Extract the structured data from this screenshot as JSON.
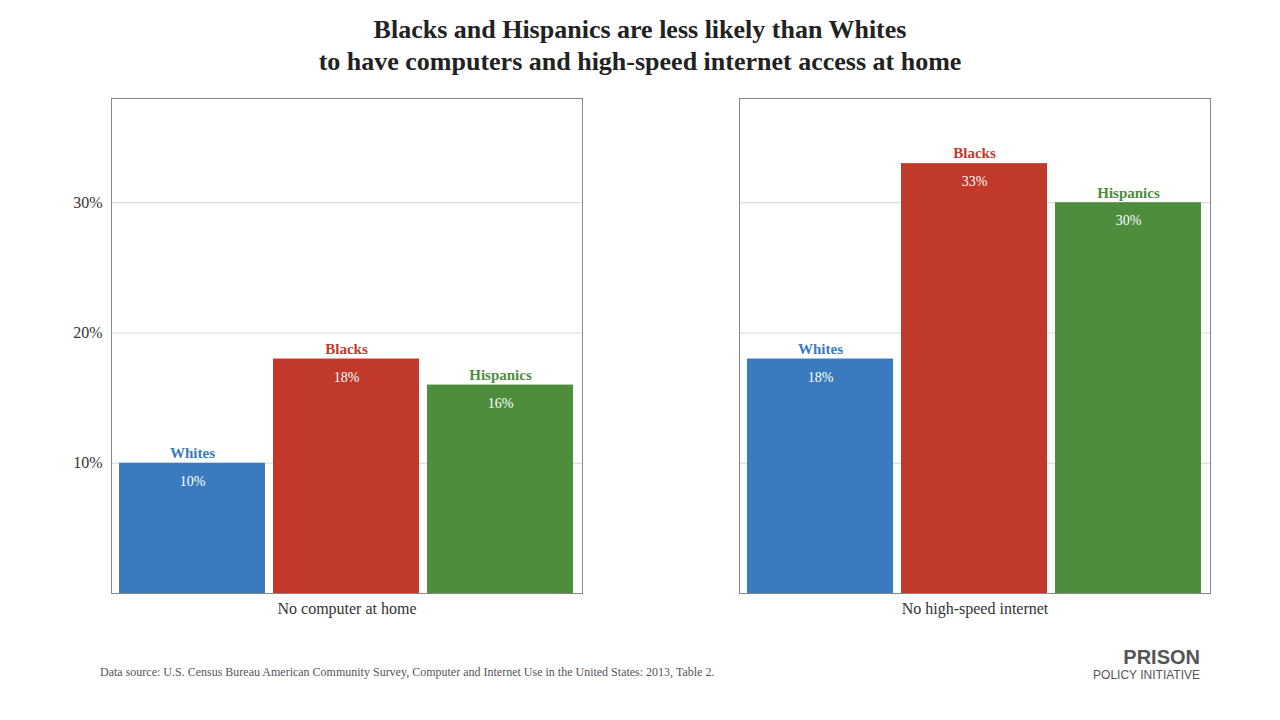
{
  "chart_data": {
    "type": "bar",
    "title": "Blacks and Hispanics are less likely than Whites",
    "subtitle": "to have computers and high-speed internet access at home",
    "categories": [
      "No computer at home",
      "No high-speed internet"
    ],
    "series": [
      {
        "name": "Whites",
        "color": "#3a7bbf",
        "values": [
          10,
          18
        ],
        "value_labels": [
          "10%",
          "18%"
        ]
      },
      {
        "name": "Blacks",
        "color": "#c0392b",
        "values": [
          18,
          33
        ],
        "value_labels": [
          "18%",
          "33%"
        ]
      },
      {
        "name": "Hispanics",
        "color": "#4e8c3e",
        "values": [
          16,
          30
        ],
        "value_labels": [
          "16%",
          "30%"
        ]
      }
    ],
    "ylim": [
      0,
      38
    ],
    "yticks": [
      {
        "value": 10,
        "label": "10%"
      },
      {
        "value": 20,
        "label": "20%"
      },
      {
        "value": 30,
        "label": "30%"
      }
    ],
    "grid": true,
    "data_labels": true,
    "annotations": [
      "Data source: U.S. Census Bureau American Community Survey, Computer and Internet Use in the United States: 2013, Table 2.",
      "PRISON",
      "POLICY INITIATIVE"
    ]
  }
}
